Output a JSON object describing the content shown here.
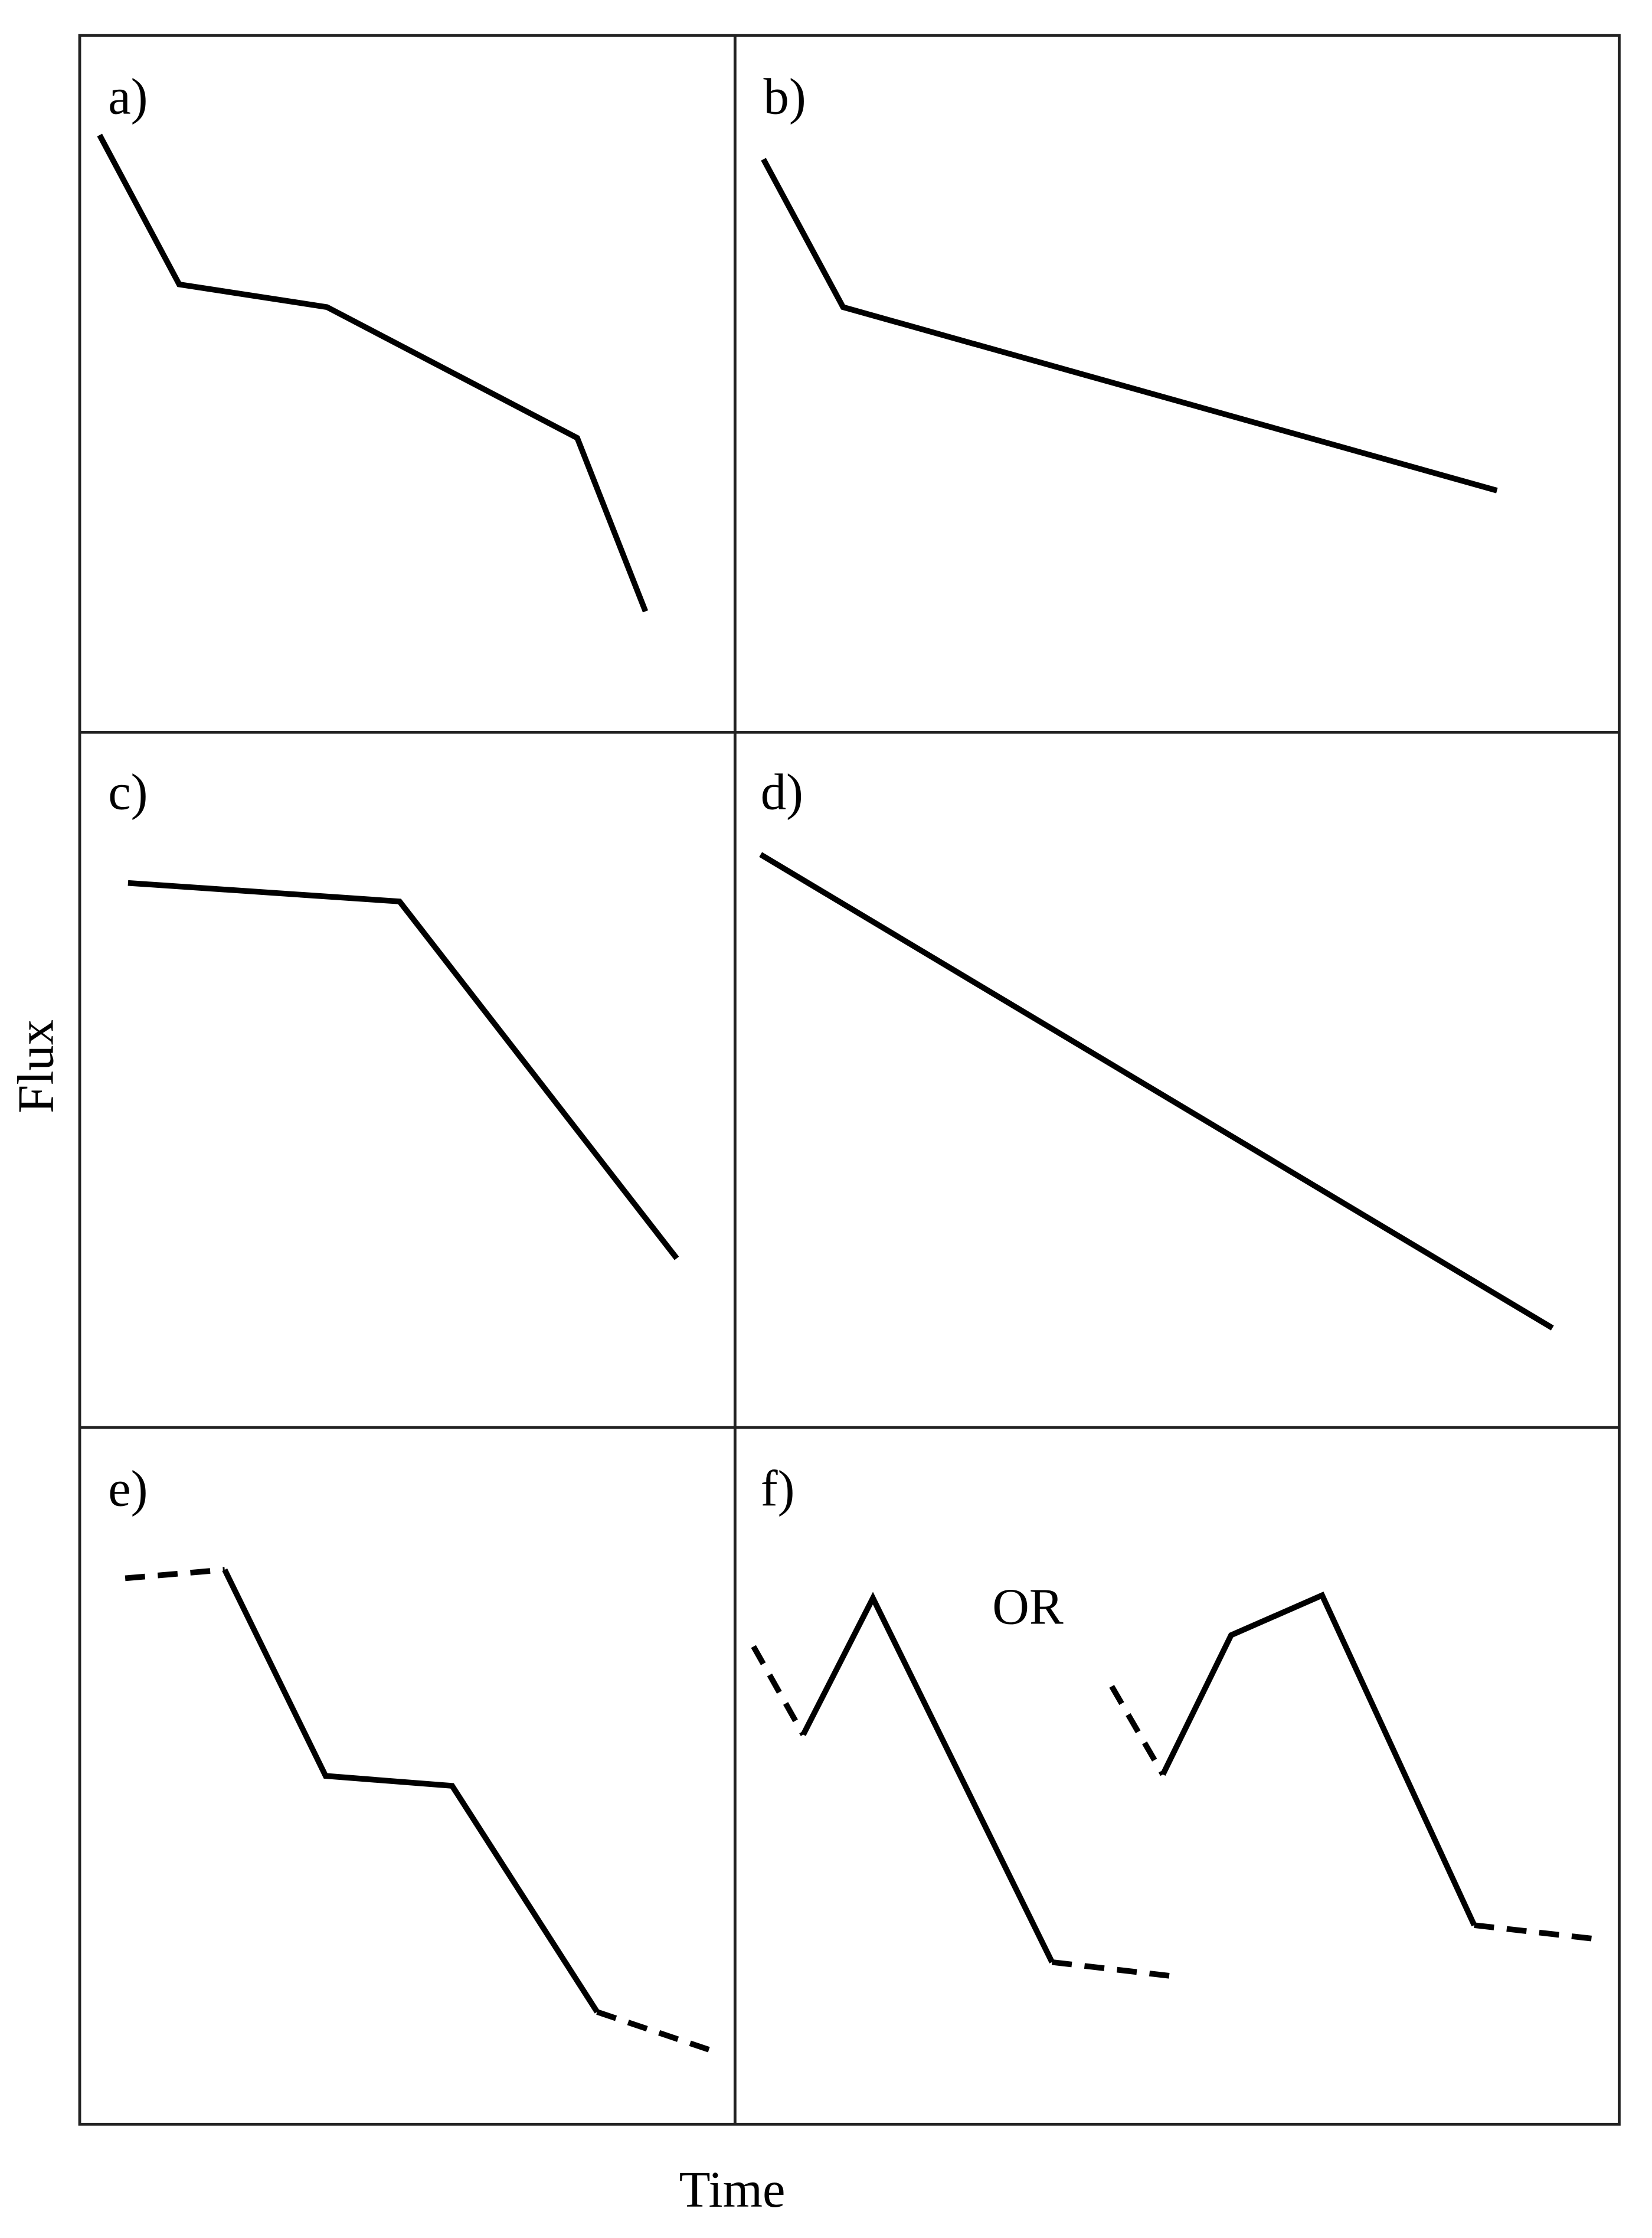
{
  "axis_labels": {
    "x": "Time",
    "y": "Flux"
  },
  "panels": [
    {
      "label": "a)"
    },
    {
      "label": "b)"
    },
    {
      "label": "c)"
    },
    {
      "label": "d)"
    },
    {
      "label": "e)"
    },
    {
      "label": "f)"
    }
  ],
  "annotation": "OR"
}
